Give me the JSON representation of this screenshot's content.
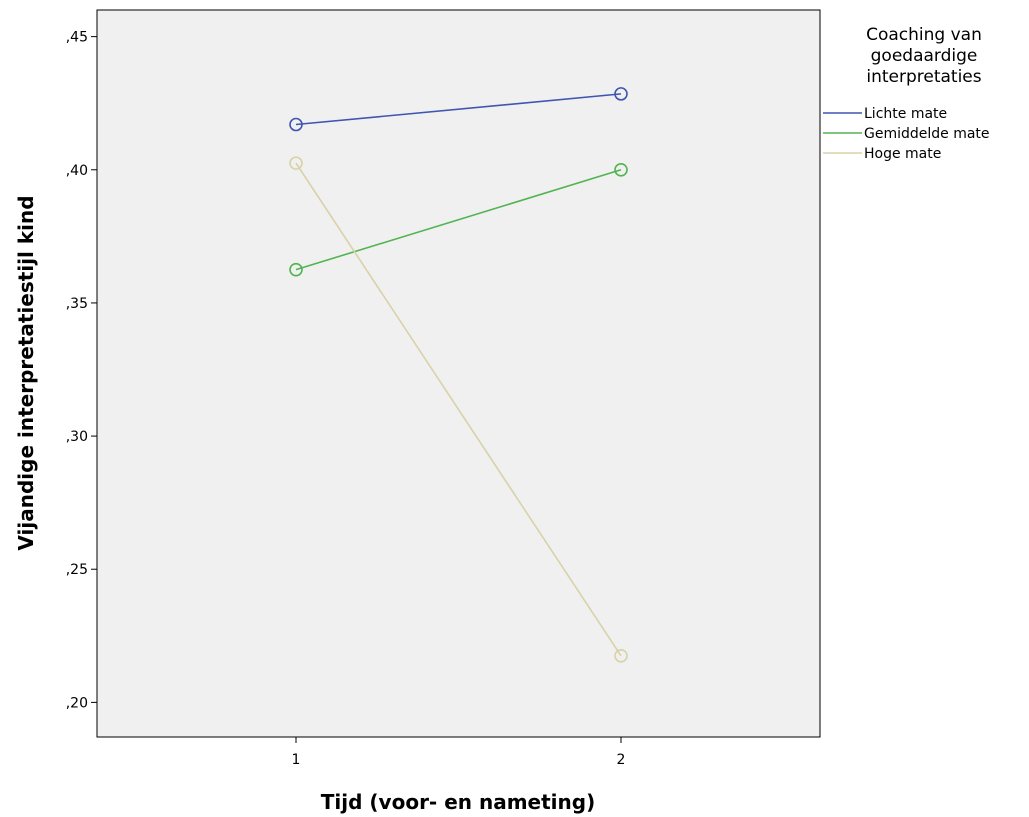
{
  "chart_data": {
    "type": "line",
    "x": [
      "1",
      "2"
    ],
    "xlabel": "Tijd (voor- en nameting)",
    "ylabel": "Vijandige interpretatiestijl kind",
    "ylim": [
      0.187,
      0.46
    ],
    "yticks": [
      0.2,
      0.25,
      0.3,
      0.35,
      0.4,
      0.45
    ],
    "ytick_labels": [
      ",20",
      ",25",
      ",30",
      ",35",
      ",40",
      ",45"
    ],
    "legend_title": [
      "Coaching van",
      "goedaardige",
      "interpretaties"
    ],
    "legend_position": "right",
    "grid": false,
    "series": [
      {
        "name": "Lichte mate",
        "color": "#3e55b1",
        "values": [
          0.417,
          0.4285
        ]
      },
      {
        "name": "Gemiddelde mate",
        "color": "#52b450",
        "values": [
          0.3625,
          0.4
        ]
      },
      {
        "name": "Hoge mate",
        "color": "#d8d2a8",
        "values": [
          0.4025,
          0.2175
        ]
      }
    ]
  }
}
